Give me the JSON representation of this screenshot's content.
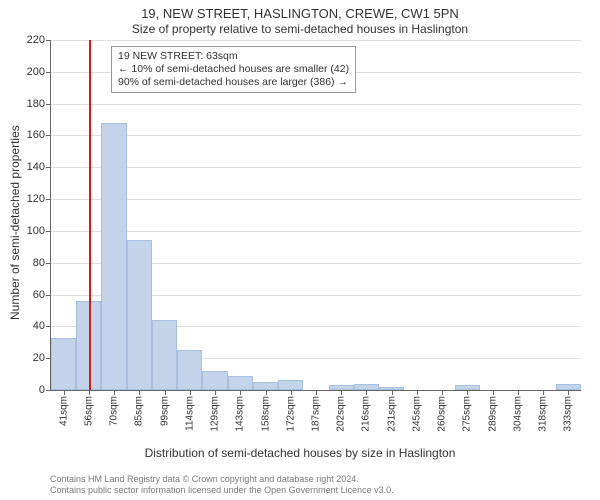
{
  "chart": {
    "type": "histogram",
    "title_main": "19, NEW STREET, HASLINGTON, CREWE, CW1 5PN",
    "title_sub": "Size of property relative to semi-detached houses in Haslington",
    "title_fontsize_main": 13,
    "title_fontsize_sub": 12,
    "background_color": "#ffffff",
    "grid_color": "#e0e0e0",
    "axis_color": "#666666",
    "text_color": "#333333",
    "bar_fill": "#c3d3ea",
    "bar_border": "#a9bfe0",
    "ref_line_color": "#d01b1b",
    "ylabel": "Number of semi-detached properties",
    "xlabel": "Distribution of semi-detached houses by size in Haslington",
    "label_fontsize": 12,
    "tick_fontsize": 11,
    "ylim": [
      0,
      220
    ],
    "ytick_step": 20,
    "yticks": [
      0,
      20,
      40,
      60,
      80,
      100,
      120,
      140,
      160,
      180,
      200,
      220
    ],
    "xticks": [
      "41sqm",
      "56sqm",
      "70sqm",
      "85sqm",
      "99sqm",
      "114sqm",
      "129sqm",
      "143sqm",
      "158sqm",
      "172sqm",
      "187sqm",
      "202sqm",
      "216sqm",
      "231sqm",
      "245sqm",
      "260sqm",
      "275sqm",
      "289sqm",
      "304sqm",
      "318sqm",
      "333sqm"
    ],
    "xstart": 41,
    "xstep": 14.6,
    "values": [
      33,
      56,
      168,
      94,
      44,
      25,
      12,
      9,
      5,
      6,
      0,
      3,
      4,
      2,
      0,
      0,
      3,
      0,
      0,
      0,
      4
    ],
    "reference_value_sqm": 63,
    "annotation": {
      "line1": "19 NEW STREET: 63sqm",
      "line2": "← 10% of semi-detached houses are smaller (42)",
      "line3": "90% of semi-detached houses are larger (386) →",
      "fontsize": 10.5,
      "border_color": "#999999",
      "bg_color": "#ffffff"
    },
    "attribution": {
      "line1": "Contains HM Land Registry data © Crown copyright and database right 2024.",
      "line2": "Contains public sector information licensed under the Open Government Licence v3.0.",
      "color": "#7a7a7a",
      "fontsize": 9
    }
  }
}
